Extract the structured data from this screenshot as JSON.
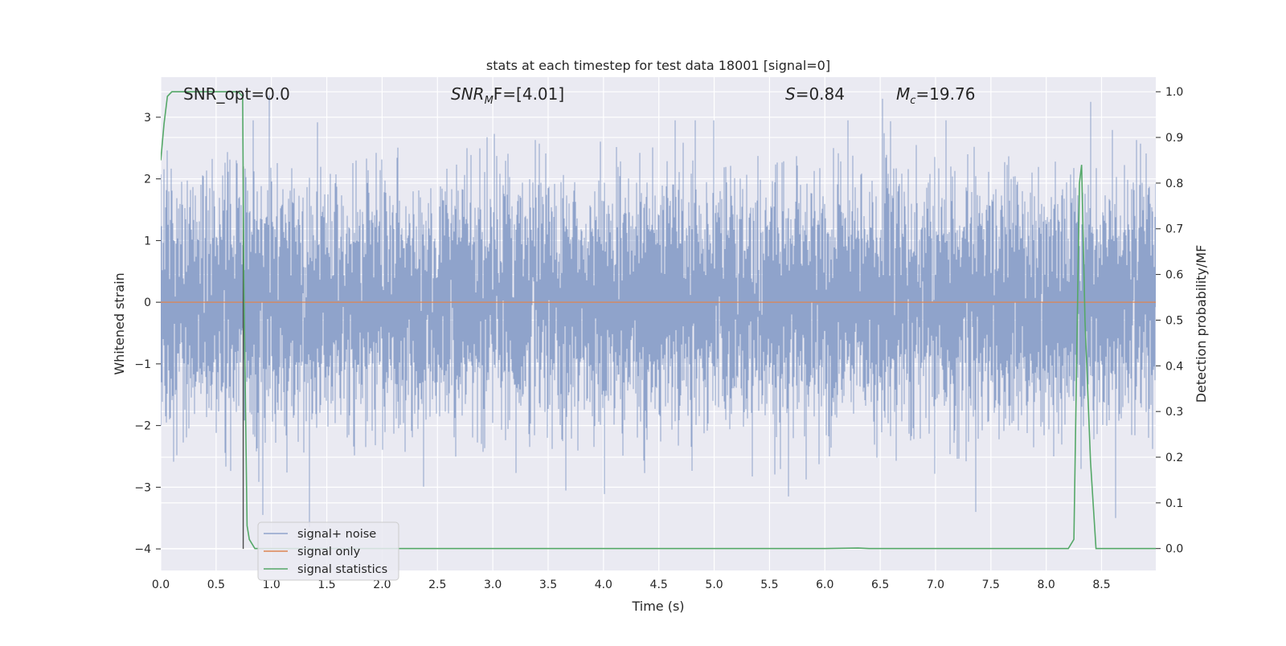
{
  "chart_data": {
    "type": "line",
    "title": "stats at each timestep for test data 18001 [signal=0]",
    "xlabel": "Time (s)",
    "ylabel": "Whitened strain",
    "ylabel_right": "Detection probability/MF",
    "xlim": [
      0.0,
      8.99
    ],
    "ylim": [
      -4.35,
      3.65
    ],
    "ylim_right": [
      -0.048,
      1.032
    ],
    "x_ticks": [
      "0.0",
      "0.5",
      "1.0",
      "1.5",
      "2.0",
      "2.5",
      "3.0",
      "3.5",
      "4.0",
      "4.5",
      "5.0",
      "5.5",
      "6.0",
      "6.5",
      "7.0",
      "7.5",
      "8.0",
      "8.5"
    ],
    "y_ticks": [
      "3",
      "2",
      "1",
      "0",
      "−1",
      "−2",
      "−3",
      "−4"
    ],
    "y_ticks_right": [
      "1.0",
      "0.9",
      "0.8",
      "0.7",
      "0.6",
      "0.5",
      "0.4",
      "0.3",
      "0.2",
      "0.1",
      "0.0"
    ],
    "grid": true,
    "legend_position": "lower-left",
    "annotations": {
      "snr_opt": "SNR_opt=0.0",
      "snr_mf_label": "SNR",
      "snr_mf_sub": "M",
      "snr_mf_value": "F=[4.01]",
      "s_label": "S",
      "s_value": "=0.84",
      "mc_label": "M",
      "mc_sub": "c",
      "mc_value": "=19.76"
    },
    "series": [
      {
        "name": "signal+ noise",
        "color": "#8fa3cb",
        "kind": "noise",
        "sample_rate_hz": 4096,
        "approx_std": 1.0,
        "approx_range": [
          -3.7,
          3.35
        ],
        "notable_peaks": [
          [
            0.98,
            3.35
          ],
          [
            6.52,
            3.3
          ],
          [
            8.4,
            3.25
          ],
          [
            1.34,
            -3.65
          ],
          [
            0.92,
            -3.45
          ],
          [
            7.36,
            -3.4
          ],
          [
            5.67,
            -3.15
          ],
          [
            8.63,
            -3.5
          ]
        ]
      },
      {
        "name": "signal only",
        "color": "#dd8452",
        "x": [
          0.0,
          8.99
        ],
        "y": [
          0.0,
          0.0
        ]
      },
      {
        "name": "signal statistics",
        "color": "#55a868",
        "axis": "right",
        "x": [
          0.0,
          0.03,
          0.06,
          0.1,
          0.2,
          0.5,
          0.7,
          0.74,
          0.75,
          0.78,
          0.8,
          0.85,
          0.9,
          2.0,
          4.0,
          6.0,
          6.3,
          6.4,
          8.0,
          8.2,
          8.25,
          8.3,
          8.32,
          8.35,
          8.4,
          8.45,
          8.99
        ],
        "y": [
          0.85,
          0.93,
          0.99,
          1.0,
          1.0,
          1.0,
          1.0,
          0.99,
          0.6,
          0.05,
          0.02,
          0.0,
          0.0,
          0.0,
          0.0,
          0.0,
          0.001,
          0.0,
          0.0,
          0.0,
          0.02,
          0.8,
          0.84,
          0.5,
          0.19,
          0.0,
          0.0
        ]
      }
    ],
    "vertical_marker": {
      "x": 0.745,
      "y_range": [
        -4.0,
        2.2
      ],
      "color": "#4c4c4c"
    }
  }
}
